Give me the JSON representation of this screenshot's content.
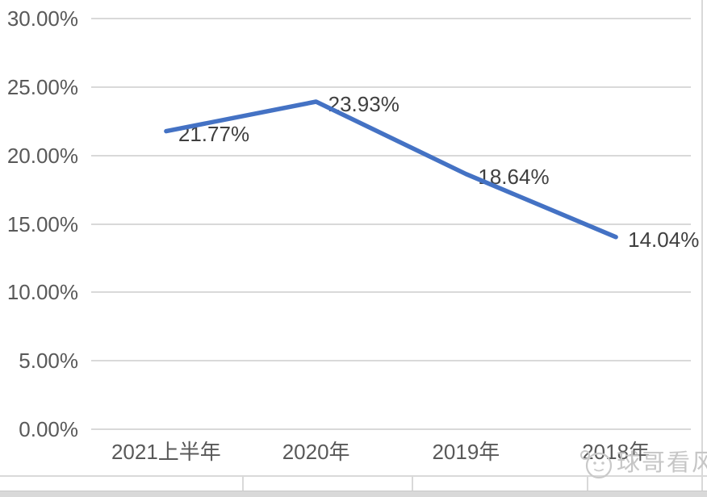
{
  "chart_data": {
    "type": "line",
    "title": "",
    "categories": [
      "2021上半年",
      "2020年",
      "2019年",
      "2018年"
    ],
    "values": [
      21.77,
      23.93,
      18.64,
      14.04
    ],
    "point_labels": [
      "21.77%",
      "23.93%",
      "18.64%",
      "14.04%"
    ],
    "y_ticks": [
      {
        "value": 30,
        "label": "30.00%"
      },
      {
        "value": 25,
        "label": "25.00%"
      },
      {
        "value": 20,
        "label": "20.00%"
      },
      {
        "value": 15,
        "label": "15.00%"
      },
      {
        "value": 10,
        "label": "10.00%"
      },
      {
        "value": 5,
        "label": "5.00%"
      },
      {
        "value": 0,
        "label": "0.00%"
      }
    ],
    "ylim": [
      0,
      30
    ],
    "xlabel": "",
    "ylabel": "",
    "grid": true,
    "legend": "none",
    "line_color": "#4472C4"
  },
  "colors": {
    "line": "#4472C4",
    "gridline": "#d9d9d9",
    "axis_text": "#595959",
    "data_label_text": "#3f3f3f",
    "watermark": "#c6c6c6",
    "cell_border": "#d9d9d9"
  },
  "watermark": {
    "icon": "face-icon",
    "text": "球哥看风"
  }
}
